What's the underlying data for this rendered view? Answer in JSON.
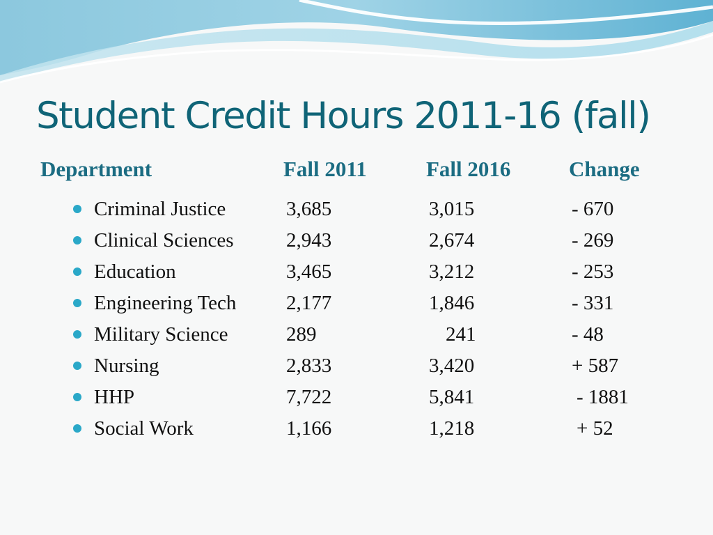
{
  "slide": {
    "title": "Student Credit Hours 2011-16 (fall)"
  },
  "table": {
    "headers": {
      "department": "Department",
      "fall2011": "Fall 2011",
      "fall2016": "Fall 2016",
      "change": "Change"
    },
    "rows": [
      {
        "department": "Criminal Justice",
        "fall2011": "3,685",
        "fall2016": "3,015",
        "change": "- 670"
      },
      {
        "department": "Clinical Sciences",
        "fall2011": "2,943",
        "fall2016": "2,674",
        "change": "- 269"
      },
      {
        "department": "Education",
        "fall2011": "3,465",
        "fall2016": "3,212",
        "change": "- 253"
      },
      {
        "department": "Engineering Tech",
        "fall2011": "2,177",
        "fall2016": "1,846",
        "change": "- 331"
      },
      {
        "department": "Military Science",
        "fall2011": "289",
        "fall2016": "241",
        "change": "- 48"
      },
      {
        "department": "Nursing",
        "fall2011": "2,833",
        "fall2016": "3,420",
        "change": "+ 587"
      },
      {
        "department": "HHP",
        "fall2011": "7,722",
        "fall2016": "5,841",
        "change": "- 1881"
      },
      {
        "department": "Social Work",
        "fall2011": "1,166",
        "fall2016": "1,218",
        "change": "+ 52"
      }
    ]
  },
  "theme": {
    "title_color": "#0f6477",
    "header_color": "#1b6c82",
    "bullet_color": "#2aa8c8",
    "wave_colors": [
      "#7fc3dd",
      "#9ed6e8",
      "#c9e9f3",
      "#ffffff"
    ]
  }
}
